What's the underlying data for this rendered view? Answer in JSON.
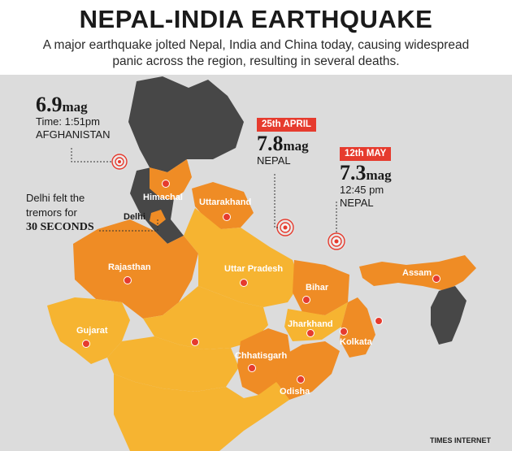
{
  "header": {
    "title": "NEPAL-INDIA EARTHQUAKE",
    "subtitle": "A major earthquake jolted Nepal, India and China today, causing widespread panic across the region, resulting in several deaths."
  },
  "quakes": {
    "afghanistan": {
      "magnitude": "6.9",
      "unit": "mag",
      "time": "Time: 1:51pm",
      "place": "AFGHANISTAN"
    },
    "april": {
      "date": "25th APRIL",
      "magnitude": "7.8",
      "unit": "mag",
      "place": "NEPAL"
    },
    "may": {
      "date": "12th MAY",
      "magnitude": "7.3",
      "unit": "mag",
      "time": "12:45 pm",
      "place": "NEPAL"
    }
  },
  "delhi_note": {
    "line1": "Delhi felt the",
    "line2": "tremors for",
    "emphasis": "30 SECONDS"
  },
  "states": {
    "himachal": "Himachal",
    "uttarakhand": "Uttarakhand",
    "delhi": "Delhi",
    "rajasthan": "Rajasthan",
    "uttar_pradesh": "Uttar Pradesh",
    "bihar": "Bihar",
    "assam": "Assam",
    "gujarat": "Gujarat",
    "jharkhand": "Jharkhand",
    "kolkata": "Kolkata",
    "chhatisgarh": "Chhatisgarh",
    "odisha": "Odisha"
  },
  "credit": "TIMES INTERNET",
  "colors": {
    "affected_dark": "#ef8c25",
    "affected_light": "#f6b431",
    "unaffected": "#474747",
    "background": "#dcdcdc",
    "epicenter": "#e63b2e"
  }
}
